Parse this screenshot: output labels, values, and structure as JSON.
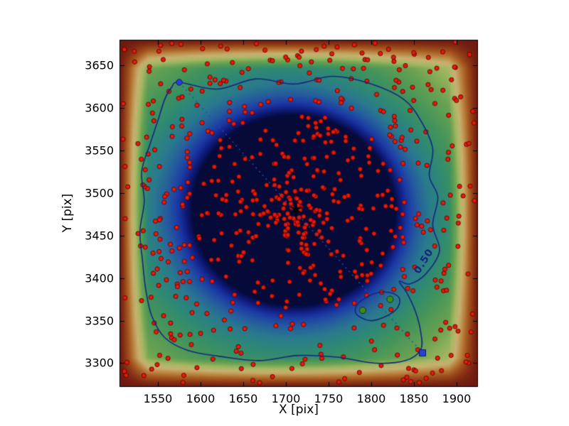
{
  "figure": {
    "background": "#ffffff"
  },
  "chart_data": {
    "type": "scatter",
    "title": "",
    "xlabel": "X [pix]",
    "ylabel": "Y [pix]",
    "xlim": [
      1505,
      1925
    ],
    "ylim": [
      3272,
      3680
    ],
    "x_ticks": [
      1550,
      1600,
      1650,
      1700,
      1750,
      1800,
      1850,
      1900
    ],
    "y_ticks": [
      3300,
      3350,
      3400,
      3450,
      3500,
      3550,
      3600,
      3650
    ],
    "grid": false,
    "legend": null,
    "heatmap": {
      "description": "2D density map, dark navy at peak near (1712,3480), green mid-density, tan/brown at low-density borders",
      "colormap_stops": [
        [
          0.0,
          "#6e1a10"
        ],
        [
          0.05,
          "#8f3a16"
        ],
        [
          0.1,
          "#a85c22"
        ],
        [
          0.16,
          "#bd8a46"
        ],
        [
          0.22,
          "#c9b173"
        ],
        [
          0.3,
          "#a8b964"
        ],
        [
          0.4,
          "#6aa352"
        ],
        [
          0.52,
          "#43945c"
        ],
        [
          0.62,
          "#2f8a74"
        ],
        [
          0.72,
          "#2a7a8f"
        ],
        [
          0.8,
          "#265e9e"
        ],
        [
          0.88,
          "#1c3aa6"
        ],
        [
          0.94,
          "#101c7d"
        ],
        [
          1.0,
          "#050a38"
        ]
      ],
      "blobs": [
        [
          1712,
          3480,
          0.78,
          72
        ],
        [
          1700,
          3468,
          0.5,
          190
        ],
        [
          1610,
          3545,
          0.16,
          110
        ],
        [
          1795,
          3525,
          0.15,
          100
        ],
        [
          1645,
          3390,
          0.15,
          110
        ],
        [
          1790,
          3405,
          0.13,
          95
        ],
        [
          1560,
          3470,
          0.1,
          120
        ],
        [
          1720,
          3600,
          0.1,
          120
        ],
        [
          1860,
          3460,
          0.08,
          100
        ]
      ],
      "edge_fade_units": 34
    },
    "contour": {
      "level_label": "0.50",
      "color": "#16277d",
      "label_x": 1862,
      "label_y": 3420,
      "label_rotation_deg": -58,
      "main_path": [
        [
          1575,
          3630
        ],
        [
          1620,
          3622
        ],
        [
          1665,
          3634
        ],
        [
          1710,
          3628
        ],
        [
          1755,
          3637
        ],
        [
          1800,
          3628
        ],
        [
          1838,
          3610
        ],
        [
          1858,
          3585
        ],
        [
          1872,
          3552
        ],
        [
          1868,
          3520
        ],
        [
          1878,
          3495
        ],
        [
          1872,
          3462
        ],
        [
          1880,
          3432
        ],
        [
          1864,
          3405
        ],
        [
          1845,
          3393
        ],
        [
          1833,
          3396
        ],
        [
          1842,
          3382
        ],
        [
          1852,
          3360
        ],
        [
          1858,
          3336
        ],
        [
          1858,
          3316
        ],
        [
          1840,
          3303
        ],
        [
          1805,
          3300
        ],
        [
          1760,
          3307
        ],
        [
          1715,
          3309
        ],
        [
          1668,
          3303
        ],
        [
          1622,
          3308
        ],
        [
          1585,
          3315
        ],
        [
          1558,
          3330
        ],
        [
          1543,
          3355
        ],
        [
          1536,
          3385
        ],
        [
          1532,
          3420
        ],
        [
          1529,
          3455
        ],
        [
          1534,
          3490
        ],
        [
          1531,
          3525
        ],
        [
          1541,
          3558
        ],
        [
          1550,
          3585
        ],
        [
          1558,
          3610
        ],
        [
          1566,
          3624
        ]
      ],
      "small_loop": [
        [
          1783,
          3357
        ],
        [
          1798,
          3350
        ],
        [
          1815,
          3354
        ],
        [
          1830,
          3364
        ],
        [
          1833,
          3376
        ],
        [
          1822,
          3383
        ],
        [
          1804,
          3382
        ],
        [
          1789,
          3374
        ],
        [
          1782,
          3366
        ]
      ]
    },
    "annotation_line": {
      "x1": 1575,
      "y1": 3630,
      "x2": 1860,
      "y2": 3312,
      "color": "#2b4bb0",
      "style": "dotted"
    },
    "markers": {
      "center": {
        "x": 1712,
        "y": 3480,
        "symbol": "asterisk",
        "color": "#000000"
      },
      "blue": {
        "color": "#2a3fd4",
        "points": [
          {
            "x": 1575,
            "y": 3630,
            "shape": "circle"
          },
          {
            "x": 1860,
            "y": 3312,
            "shape": "square"
          }
        ]
      },
      "green": {
        "color": "#3c8a1d",
        "points": [
          {
            "x": 1790,
            "y": 3362
          },
          {
            "x": 1822,
            "y": 3375
          }
        ]
      }
    },
    "scatter": {
      "color": "#e41a0c",
      "edge_color": "#500000",
      "radius_px": 3.1,
      "seed": 7,
      "uniform": {
        "count": 480,
        "x": [
          1509,
          1921
        ],
        "y": [
          3276,
          3678
        ]
      },
      "clusters": [
        {
          "x": 1712,
          "y": 3480,
          "sigma": 22,
          "count": 70
        },
        {
          "x": 1708,
          "y": 3473,
          "sigma": 80,
          "count": 90
        }
      ]
    }
  }
}
